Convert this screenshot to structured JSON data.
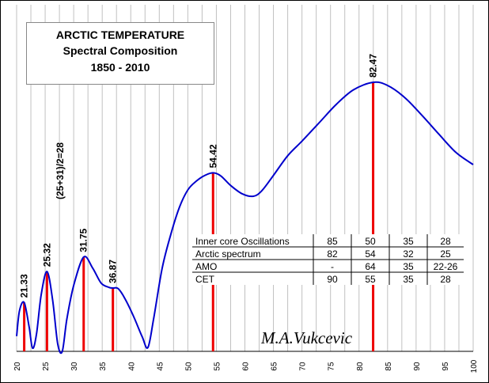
{
  "chart_data": {
    "type": "line",
    "title": [
      "ARCTIC TEMPERATURE",
      "Spectral Composition",
      "1850 - 2010"
    ],
    "xlim": [
      20,
      100
    ],
    "x_ticks": [
      20,
      25,
      30,
      35,
      40,
      45,
      50,
      55,
      60,
      65,
      70,
      75,
      80,
      85,
      90,
      95,
      100
    ],
    "grid": "vertical",
    "series": [
      {
        "color": "#0000cc",
        "x": [
          20,
          20.5,
          21.33,
          22.2,
          22.8,
          23.5,
          24.3,
          25.32,
          26.3,
          27.2,
          28,
          28.8,
          30,
          31.75,
          33.3,
          34.8,
          36.2,
          36.87,
          37.8,
          39,
          40.5,
          42,
          43,
          44,
          45.5,
          47,
          48.5,
          50,
          51.5,
          53,
          54.42,
          55.8,
          57.5,
          59.5,
          61.5,
          63,
          65,
          67.5,
          70,
          73,
          76,
          79,
          82.47,
          85,
          88,
          91,
          94,
          97,
          100
        ],
        "y": [
          24,
          64,
          77,
          38,
          5,
          28,
          89,
          126,
          82,
          12,
          0,
          51,
          104,
          149,
          132,
          108,
          101,
          100,
          99,
          83,
          55,
          23,
          6,
          51,
          131,
          184,
          227,
          255,
          269,
          278,
          282,
          277,
          262,
          249,
          245,
          254,
          278,
          309,
          332,
          361,
          390,
          413,
          425,
          420,
          401,
          373,
          343,
          314,
          295
        ]
      }
    ],
    "peaks": [
      {
        "x": 21.33,
        "y": 77,
        "label": "21.33"
      },
      {
        "x": 25.32,
        "y": 126,
        "label": "25.32"
      },
      {
        "x": 31.75,
        "y": 149,
        "label": "31.75"
      },
      {
        "x": 36.87,
        "y": 100,
        "label": "36.87"
      },
      {
        "x": 54.42,
        "y": 282,
        "label": "54.42"
      },
      {
        "x": 82.47,
        "y": 425,
        "label": "82.47"
      }
    ],
    "peak_line_color": "#ee0000",
    "annotation": "(25+31)/2=28",
    "table": {
      "rows": [
        [
          "Inner core Oscillations",
          "85",
          "50",
          "35",
          "28"
        ],
        [
          "Arctic spectrum",
          "82",
          "54",
          "32",
          "25"
        ],
        [
          "AMO",
          "-",
          "64",
          "35",
          "22-26"
        ],
        [
          "CET",
          "90",
          "55",
          "35",
          "28"
        ]
      ]
    },
    "signature": "M.A.Vukcevic"
  }
}
